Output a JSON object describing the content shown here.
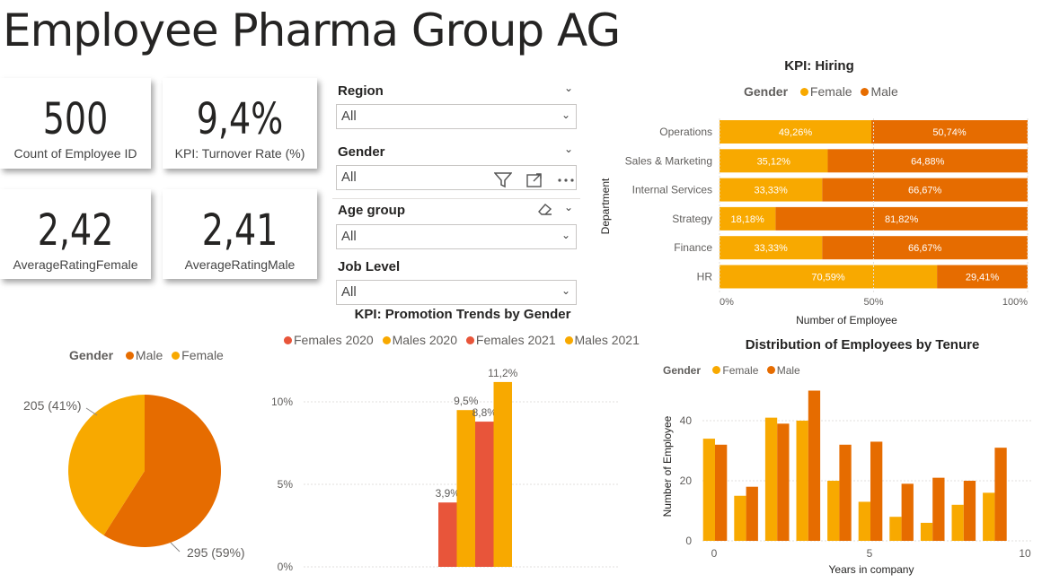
{
  "page": {
    "title": "Employee Pharma Group AG"
  },
  "colors": {
    "female": "#F8A900",
    "male": "#E66C00",
    "females2020": "#E8553A",
    "males2020": "#F8A900",
    "females2021": "#E8553A",
    "males2021": "#F8A900"
  },
  "cards": [
    {
      "value": "500",
      "label": "Count of Employee ID"
    },
    {
      "value": "9,4%",
      "label": "KPI: Turnover Rate (%)"
    },
    {
      "value": "2,42",
      "label": "AverageRatingFemale"
    },
    {
      "value": "2,41",
      "label": "AverageRatingMale"
    }
  ],
  "slicers": [
    {
      "title": "Region",
      "value": "All"
    },
    {
      "title": "Gender",
      "value": "All"
    },
    {
      "title": "Age group",
      "value": "All"
    },
    {
      "title": "Job Level",
      "value": "All"
    }
  ],
  "toolbar": {
    "icons": [
      "filter-icon",
      "focus-mode-icon",
      "more-options-icon"
    ],
    "eraser_icon": "eraser-icon"
  },
  "chart_data": [
    {
      "type": "bar",
      "orientation": "horizontal-stacked-100",
      "title": "KPI: Hiring",
      "legend_title": "Gender",
      "legend": [
        "Female",
        "Male"
      ],
      "ylabel": "Department",
      "xlabel": "Number of Employee",
      "categories": [
        "Operations",
        "Sales & Marketing",
        "Internal Services",
        "Strategy",
        "Finance",
        "HR"
      ],
      "series": [
        {
          "name": "Female",
          "values": [
            49.26,
            35.12,
            33.33,
            18.18,
            33.33,
            70.59
          ],
          "labels": [
            "49,26%",
            "35,12%",
            "33,33%",
            "18,18%",
            "33,33%",
            "70,59%"
          ]
        },
        {
          "name": "Male",
          "values": [
            50.74,
            64.88,
            66.67,
            81.82,
            66.67,
            29.41
          ],
          "labels": [
            "50,74%",
            "64,88%",
            "66,67%",
            "81,82%",
            "66,67%",
            "29,41%"
          ]
        }
      ],
      "xticks": [
        "0%",
        "50%",
        "100%"
      ]
    },
    {
      "type": "pie",
      "legend_title": "Gender",
      "legend": [
        "Male",
        "Female"
      ],
      "slices": [
        {
          "name": "Male",
          "value": 295,
          "label": "295 (59%)"
        },
        {
          "name": "Female",
          "value": 205,
          "label": "205 (41%)"
        }
      ]
    },
    {
      "type": "bar",
      "title": "KPI: Promotion Trends by Gender",
      "legend": [
        "Females 2020",
        "Males 2020",
        "Females 2021",
        "Males 2021"
      ],
      "series": [
        {
          "name": "Females 2020",
          "value": 3.9,
          "label": "3,9%"
        },
        {
          "name": "Males 2020",
          "value": 9.5,
          "label": "9,5%"
        },
        {
          "name": "Females 2021",
          "value": 8.8,
          "label": "8,8%"
        },
        {
          "name": "Males 2021",
          "value": 11.2,
          "label": "11,2%"
        }
      ],
      "yticks": [
        "0%",
        "5%",
        "10%"
      ],
      "ylim": [
        0,
        12
      ]
    },
    {
      "type": "bar",
      "title": "Distribution of Employees by Tenure",
      "legend_title": "Gender",
      "legend": [
        "Female",
        "Male"
      ],
      "xlabel": "Years in company",
      "ylabel": "Number of Employee",
      "x": [
        0,
        1,
        2,
        3,
        4,
        5,
        6,
        7,
        8,
        9
      ],
      "series": [
        {
          "name": "Female",
          "values": [
            34,
            15,
            41,
            40,
            20,
            13,
            8,
            6,
            12,
            16
          ]
        },
        {
          "name": "Male",
          "values": [
            32,
            18,
            39,
            50,
            32,
            33,
            19,
            21,
            20,
            31
          ]
        }
      ],
      "yticks": [
        "0",
        "20",
        "40"
      ],
      "xticks": [
        "0",
        "5",
        "10"
      ],
      "ylim": [
        0,
        52
      ],
      "xlim": [
        -0.4,
        10
      ]
    }
  ]
}
